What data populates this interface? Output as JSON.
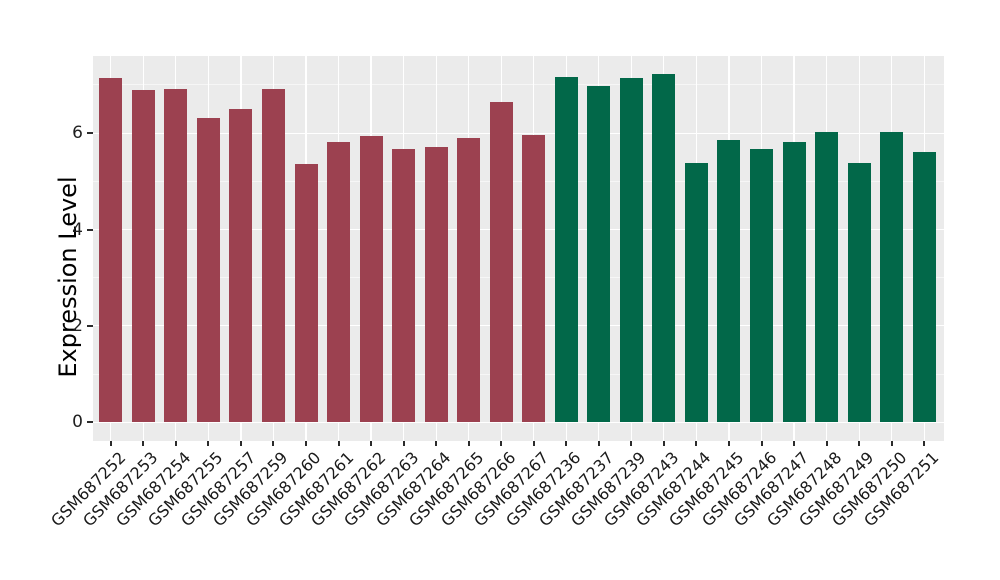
{
  "chart": {
    "y_axis_title": "Expression Level"
  },
  "chart_data": {
    "type": "bar",
    "title": "",
    "xlabel": "",
    "ylabel": "Expression Level",
    "ylim": [
      -0.39,
      7.6
    ],
    "yticks": [
      0,
      2,
      4,
      6
    ],
    "minor_yticks": [
      1,
      3,
      5,
      7
    ],
    "grid": "white major and minor horizontal gridlines plus vertical gridline at each bar center, on gray panel",
    "legend": "none",
    "panel_background": "#ebebeb",
    "text_color": "#1f1f1f",
    "groups": [
      {
        "name": "group-1",
        "color": "#9c4150",
        "categories": [
          "GSM687252",
          "GSM687253",
          "GSM687254",
          "GSM687255",
          "GSM687257",
          "GSM687259",
          "GSM687260",
          "GSM687261",
          "GSM687262",
          "GSM687263",
          "GSM687264",
          "GSM687265",
          "GSM687266",
          "GSM687267"
        ],
        "values": [
          7.15,
          6.89,
          6.92,
          6.31,
          6.49,
          6.92,
          5.36,
          5.81,
          5.93,
          5.67,
          5.71,
          5.9,
          6.65,
          5.97
        ]
      },
      {
        "name": "group-2",
        "color": "#026849",
        "categories": [
          "GSM687236",
          "GSM687237",
          "GSM687239",
          "GSM687243",
          "GSM687244",
          "GSM687245",
          "GSM687246",
          "GSM687247",
          "GSM687248",
          "GSM687249",
          "GSM687250",
          "GSM687251"
        ],
        "values": [
          7.17,
          6.98,
          7.15,
          7.23,
          5.38,
          5.86,
          5.68,
          5.81,
          6.02,
          5.38,
          6.03,
          5.6
        ]
      }
    ]
  }
}
